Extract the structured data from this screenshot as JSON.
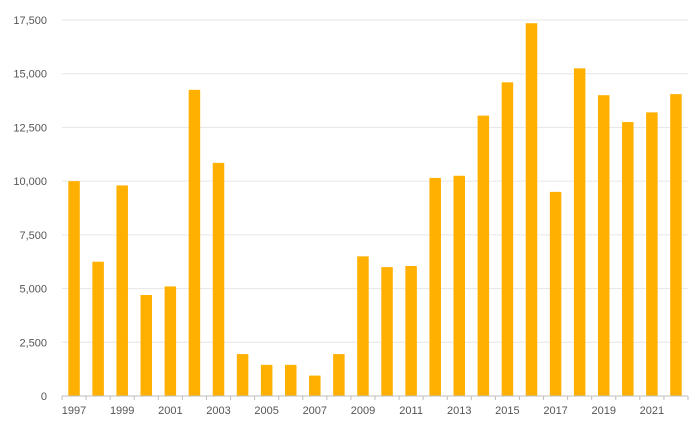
{
  "chart_data": {
    "type": "bar",
    "title": "",
    "xlabel": "",
    "ylabel": "",
    "bar_color": "#FFB000",
    "grid": true,
    "ylim": [
      0,
      17500
    ],
    "y_ticks": [
      0,
      2500,
      5000,
      7500,
      10000,
      12500,
      15000,
      17500
    ],
    "y_tick_labels": [
      "0",
      "2,500",
      "5,000",
      "7,500",
      "10,000",
      "12,500",
      "15,000",
      "17,500"
    ],
    "categories": [
      "1997",
      "1998",
      "1999",
      "2000",
      "2001",
      "2002",
      "2003",
      "2004",
      "2005",
      "2006",
      "2007",
      "2008",
      "2009",
      "2010",
      "2011",
      "2012",
      "2013",
      "2014",
      "2015",
      "2016",
      "2017",
      "2018",
      "2019",
      "2020",
      "2021",
      "2022"
    ],
    "x_tick_labels": [
      "1997",
      "1999",
      "2001",
      "2003",
      "2005",
      "2007",
      "2009",
      "2011",
      "2013",
      "2015",
      "2017",
      "2019",
      "2021"
    ],
    "values": [
      10000,
      6250,
      9800,
      4700,
      5100,
      14250,
      10850,
      1950,
      1450,
      1450,
      950,
      1950,
      6500,
      6000,
      6050,
      10150,
      10250,
      13050,
      14600,
      17350,
      9500,
      15250,
      14000,
      12750,
      13200,
      14050
    ]
  }
}
